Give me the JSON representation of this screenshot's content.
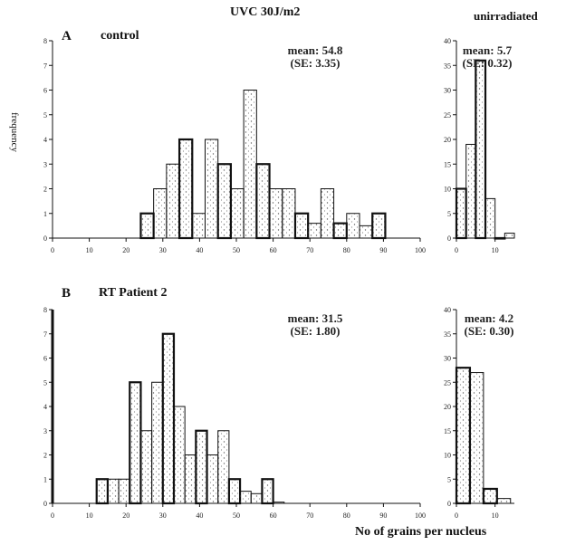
{
  "header": {
    "uvc_label": "UVC 30J/m2",
    "unirr_label": "unirradiated"
  },
  "panels": {
    "A": {
      "letter": "A",
      "title": "control"
    },
    "B": {
      "letter": "B",
      "title": "RT Patient 2"
    }
  },
  "axis": {
    "ylabel": "frequency",
    "xlabel": "No of grains per nucleus"
  },
  "chart_data": [
    {
      "id": "A-irr",
      "type": "bar",
      "title": "",
      "xlabel": "",
      "ylabel": "frequency",
      "xlim": [
        0,
        100
      ],
      "ylim": [
        0,
        8
      ],
      "xticks": [
        0,
        10,
        20,
        30,
        40,
        50,
        60,
        70,
        80,
        90,
        100
      ],
      "yticks": [
        0,
        1,
        2,
        3,
        4,
        5,
        6,
        7,
        8
      ],
      "bin_width": 3.5,
      "annotation": [
        "mean: 54.8",
        "(SE: 3.35)"
      ],
      "bars": [
        {
          "x": 24,
          "y": 1
        },
        {
          "x": 27.5,
          "y": 2
        },
        {
          "x": 31,
          "y": 3
        },
        {
          "x": 34.5,
          "y": 4
        },
        {
          "x": 38,
          "y": 1
        },
        {
          "x": 41.5,
          "y": 4
        },
        {
          "x": 45,
          "y": 3
        },
        {
          "x": 48.5,
          "y": 2
        },
        {
          "x": 52,
          "y": 6
        },
        {
          "x": 55.5,
          "y": 3
        },
        {
          "x": 59,
          "y": 2
        },
        {
          "x": 62.5,
          "y": 2
        },
        {
          "x": 66,
          "y": 1
        },
        {
          "x": 69.5,
          "y": 0.6
        },
        {
          "x": 73,
          "y": 2
        },
        {
          "x": 76.5,
          "y": 0.6
        },
        {
          "x": 80,
          "y": 1
        },
        {
          "x": 83.5,
          "y": 0.5
        },
        {
          "x": 87,
          "y": 1
        }
      ]
    },
    {
      "id": "A-unirr",
      "type": "bar",
      "title": "",
      "xlim": [
        0,
        15
      ],
      "ylim": [
        0,
        40
      ],
      "xticks": [
        0,
        10
      ],
      "yticks": [
        0,
        5,
        10,
        15,
        20,
        25,
        30,
        35,
        40
      ],
      "bin_width": 2.5,
      "annotation": [
        "mean: 5.7",
        "(SE: 0.32)"
      ],
      "bars": [
        {
          "x": 0,
          "y": 10
        },
        {
          "x": 2.5,
          "y": 19
        },
        {
          "x": 5,
          "y": 36
        },
        {
          "x": 7.5,
          "y": 8
        },
        {
          "x": 10,
          "y": 0
        },
        {
          "x": 12.5,
          "y": 1
        }
      ]
    },
    {
      "id": "B-irr",
      "type": "bar",
      "title": "",
      "xlabel": "",
      "ylabel": "",
      "xlim": [
        0,
        100
      ],
      "ylim": [
        0,
        8
      ],
      "xticks": [
        0,
        10,
        20,
        30,
        40,
        50,
        60,
        70,
        80,
        90,
        100
      ],
      "yticks": [
        0,
        1,
        2,
        3,
        4,
        5,
        6,
        7,
        8
      ],
      "bin_width": 3,
      "annotation": [
        "mean: 31.5",
        "(SE: 1.80)"
      ],
      "bars": [
        {
          "x": 12,
          "y": 1
        },
        {
          "x": 15,
          "y": 1
        },
        {
          "x": 18,
          "y": 1
        },
        {
          "x": 21,
          "y": 5
        },
        {
          "x": 24,
          "y": 3
        },
        {
          "x": 27,
          "y": 5
        },
        {
          "x": 30,
          "y": 7
        },
        {
          "x": 33,
          "y": 4
        },
        {
          "x": 36,
          "y": 2
        },
        {
          "x": 39,
          "y": 3
        },
        {
          "x": 42,
          "y": 2
        },
        {
          "x": 45,
          "y": 3
        },
        {
          "x": 48,
          "y": 1
        },
        {
          "x": 51,
          "y": 0.5
        },
        {
          "x": 54,
          "y": 0.4
        },
        {
          "x": 57,
          "y": 1
        },
        {
          "x": 60,
          "y": 0.05
        }
      ]
    },
    {
      "id": "B-unirr",
      "type": "bar",
      "title": "",
      "xlim": [
        0,
        15
      ],
      "ylim": [
        0,
        40
      ],
      "xticks": [
        0,
        10
      ],
      "yticks": [
        0,
        5,
        10,
        15,
        20,
        25,
        30,
        35,
        40
      ],
      "bin_width": 3.5,
      "annotation": [
        "mean: 4.2",
        "(SE: 0.30)"
      ],
      "bars": [
        {
          "x": 0,
          "y": 28
        },
        {
          "x": 3.5,
          "y": 27
        },
        {
          "x": 7,
          "y": 3
        },
        {
          "x": 10.5,
          "y": 1
        }
      ]
    }
  ]
}
